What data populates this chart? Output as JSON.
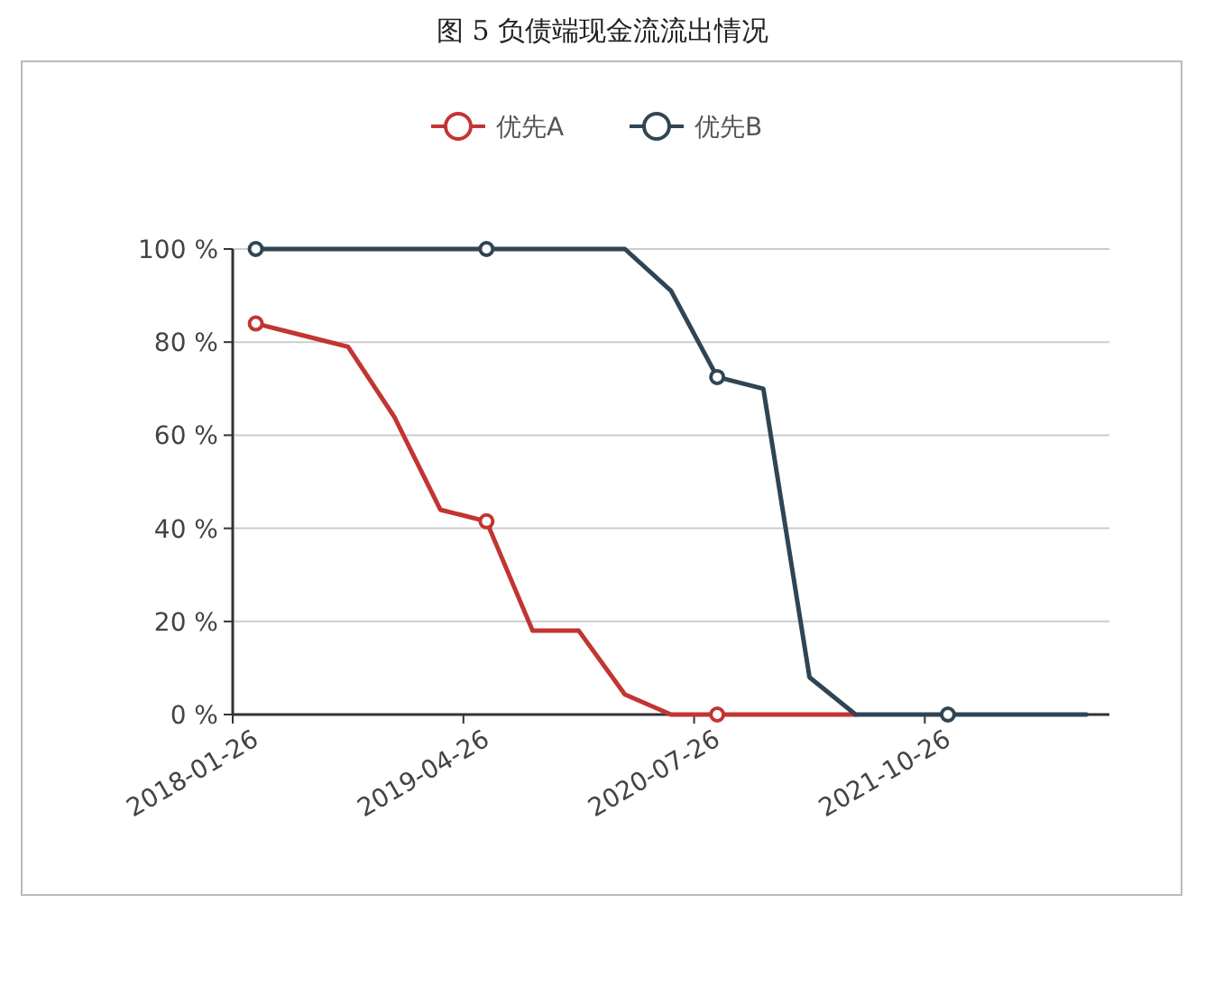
{
  "chart_data": {
    "type": "line",
    "title": "图 5  负债端现金流流出情况",
    "categories": [
      "2018-01-26",
      null,
      null,
      null,
      null,
      "2019-04-26",
      null,
      null,
      null,
      null,
      "2020-07-26",
      null,
      null,
      null,
      null,
      "2021-10-26",
      null,
      null,
      null
    ],
    "series": [
      {
        "name": "优先A",
        "color": "#c23531",
        "values": [
          84,
          81.5,
          79,
          64,
          44,
          41.5,
          18,
          18,
          4.3,
          0,
          0,
          0,
          0,
          0,
          null,
          null,
          null,
          null,
          null
        ]
      },
      {
        "name": "优先B",
        "color": "#2f4554",
        "values": [
          100,
          100,
          100,
          100,
          100,
          100,
          100,
          100,
          100,
          91,
          72.5,
          70,
          8,
          0,
          0,
          0,
          0,
          0,
          0
        ]
      }
    ],
    "ylim": [
      0,
      100
    ],
    "yticks": [
      {
        "value": 0,
        "label": "0 %"
      },
      {
        "value": 20,
        "label": "20 %"
      },
      {
        "value": 40,
        "label": "40 %"
      },
      {
        "value": 60,
        "label": "60 %"
      },
      {
        "value": 80,
        "label": "80 %"
      },
      {
        "value": 100,
        "label": "100 %"
      }
    ],
    "grid": "y",
    "legend": "top",
    "line_style": "solid"
  }
}
